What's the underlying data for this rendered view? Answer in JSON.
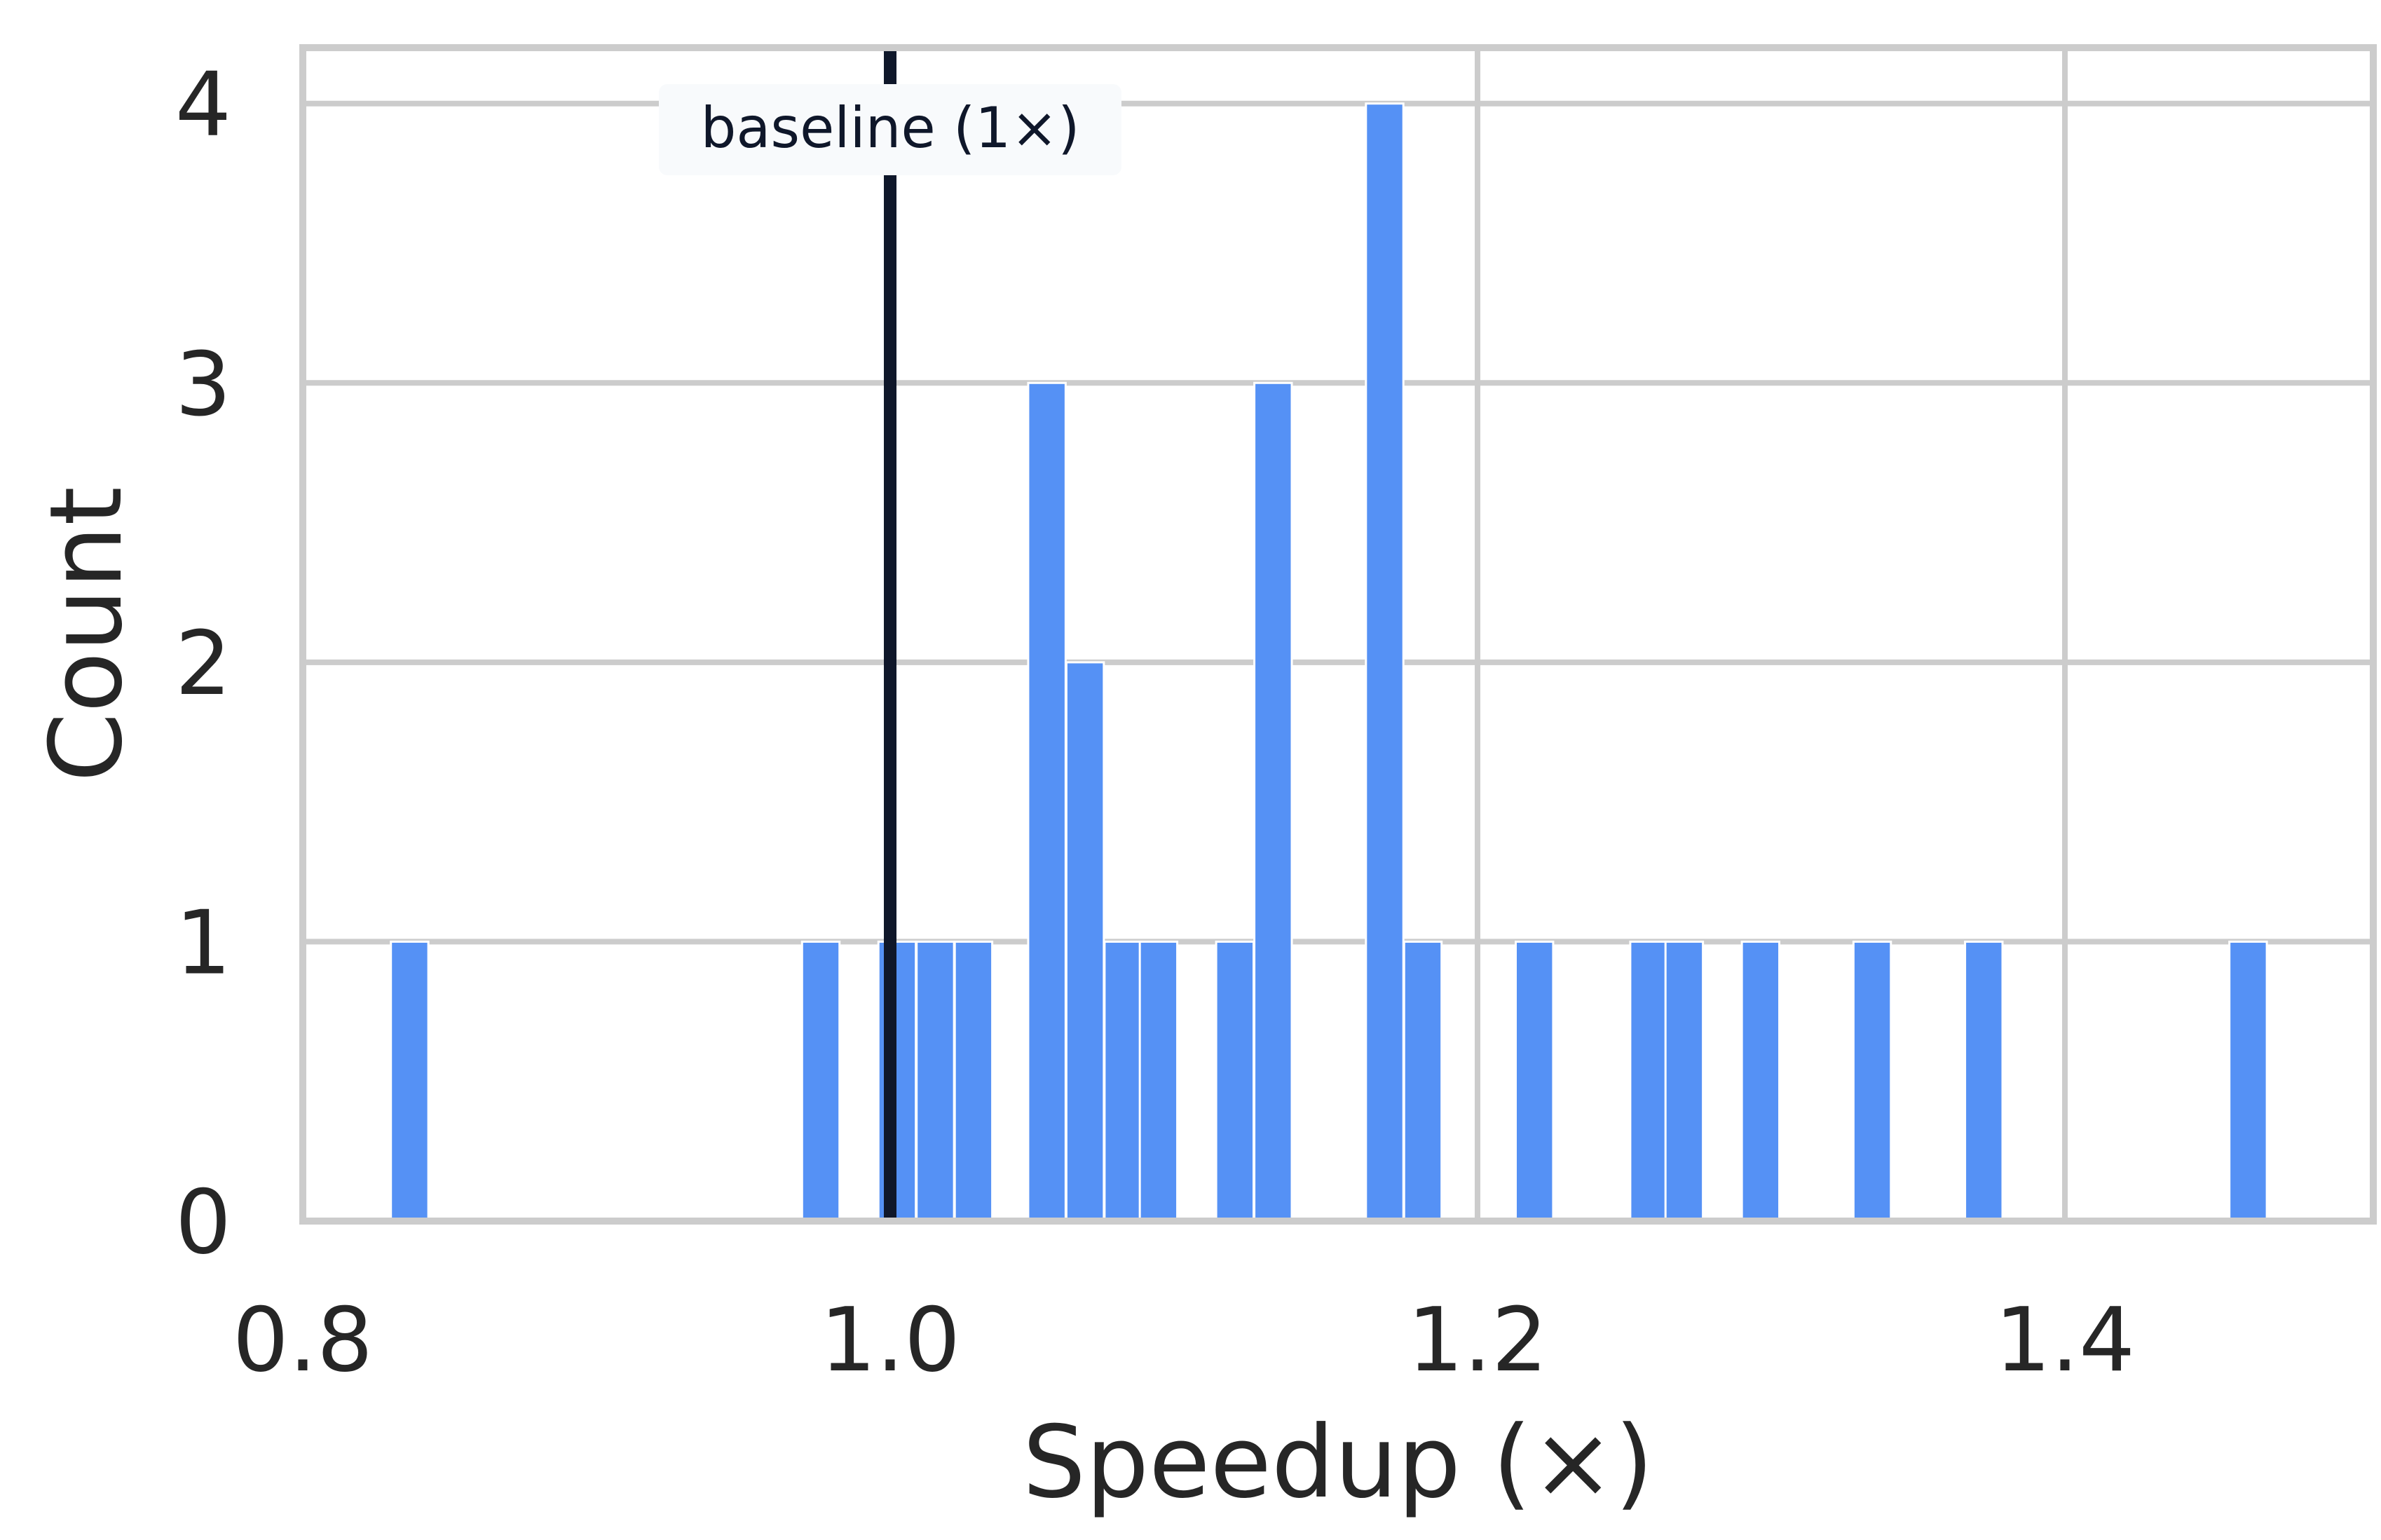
{
  "chart_data": {
    "type": "bar",
    "histogram": true,
    "xlabel": "Speedup (×)",
    "ylabel": "Count",
    "xlim": [
      0.8,
      1.505
    ],
    "ylim": [
      0,
      4.2
    ],
    "xticks": [
      0.8,
      1.0,
      1.2,
      1.4
    ],
    "xtick_labels": [
      "0.8",
      "1.0",
      "1.2",
      "1.4"
    ],
    "yticks": [
      0,
      1,
      2,
      3,
      4
    ],
    "ytick_labels": [
      "0",
      "1",
      "2",
      "3",
      "4"
    ],
    "grid": true,
    "bin_width": 0.01275,
    "bar_color": "#5591f5",
    "bars": [
      {
        "x0": 0.83,
        "count": 1
      },
      {
        "x0": 0.97,
        "count": 1
      },
      {
        "x0": 0.996,
        "count": 1
      },
      {
        "x0": 1.009,
        "count": 1
      },
      {
        "x0": 1.022,
        "count": 1
      },
      {
        "x0": 1.047,
        "count": 3
      },
      {
        "x0": 1.06,
        "count": 2
      },
      {
        "x0": 1.073,
        "count": 1
      },
      {
        "x0": 1.085,
        "count": 1
      },
      {
        "x0": 1.111,
        "count": 1
      },
      {
        "x0": 1.124,
        "count": 3
      },
      {
        "x0": 1.162,
        "count": 4
      },
      {
        "x0": 1.175,
        "count": 1
      },
      {
        "x0": 1.213,
        "count": 1
      },
      {
        "x0": 1.252,
        "count": 1
      },
      {
        "x0": 1.264,
        "count": 1
      },
      {
        "x0": 1.29,
        "count": 1
      },
      {
        "x0": 1.328,
        "count": 1
      },
      {
        "x0": 1.366,
        "count": 1
      },
      {
        "x0": 1.456,
        "count": 1
      }
    ],
    "reference_line": {
      "x": 1.0,
      "label": "baseline (1×)",
      "color": "#0f172a"
    }
  }
}
